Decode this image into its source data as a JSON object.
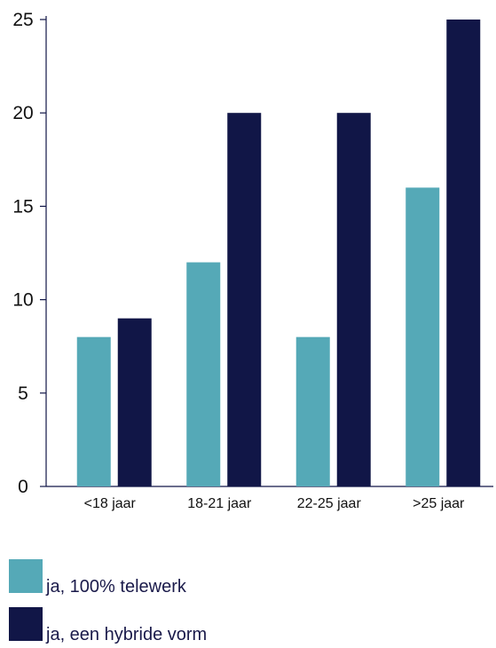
{
  "chart_data": {
    "type": "bar",
    "categories": [
      "<18 jaar",
      "18-21 jaar",
      "22-25 jaar",
      ">25 jaar"
    ],
    "series": [
      {
        "name": "ja, 100% telewerk",
        "values": [
          8,
          12,
          8,
          16
        ],
        "color": "#55a9b7"
      },
      {
        "name": "ja, een hybride vorm",
        "values": [
          9,
          20,
          20,
          25
        ],
        "color": "#111647"
      }
    ],
    "yticks": [
      "0",
      "5",
      "10",
      "15",
      "20",
      "25"
    ],
    "ylim": [
      0,
      25
    ],
    "grid": false,
    "legend_position": "bottom-left"
  }
}
